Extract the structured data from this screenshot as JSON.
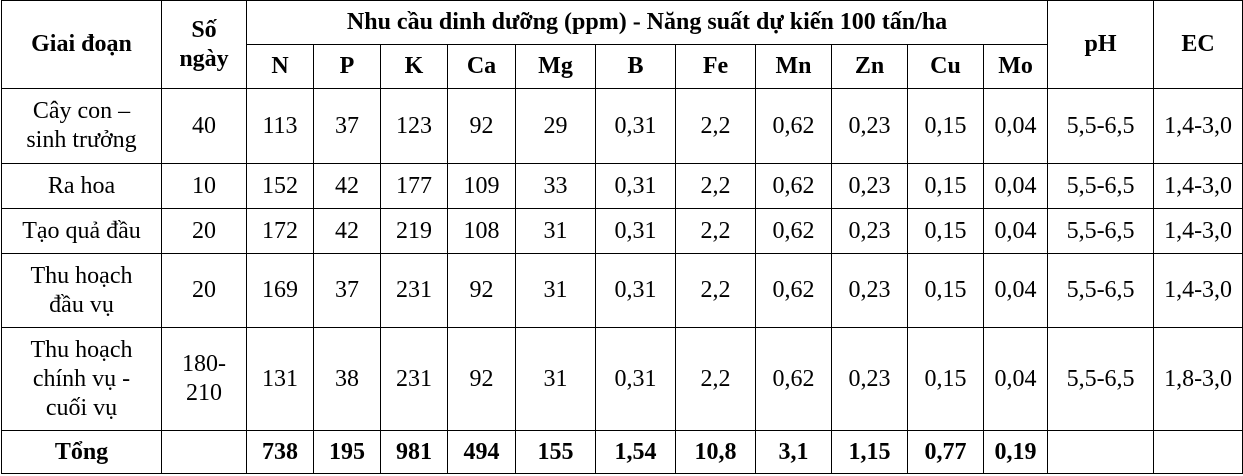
{
  "headers": {
    "stage": "Giai đoạn",
    "days_line1": "Số",
    "days_line2": "ngày",
    "group": "Nhu cầu dinh dưỡng (ppm) - Năng suất dự kiến 100 tấn/ha",
    "nutrients": [
      "N",
      "P",
      "K",
      "Ca",
      "Mg",
      "B",
      "Fe",
      "Mn",
      "Zn",
      "Cu",
      "Mo"
    ],
    "ph": "pH",
    "ec": "EC"
  },
  "rows": [
    {
      "stage_lines": [
        "Cây con –",
        "sinh trưởng"
      ],
      "days_lines": [
        "40"
      ],
      "values": [
        "113",
        "37",
        "123",
        "92",
        "29",
        "0,31",
        "2,2",
        "0,62",
        "0,23",
        "0,15",
        "0,04"
      ],
      "ph": "5,5-6,5",
      "ec": "1,4-3,0"
    },
    {
      "stage_lines": [
        "Ra hoa"
      ],
      "days_lines": [
        "10"
      ],
      "values": [
        "152",
        "42",
        "177",
        "109",
        "33",
        "0,31",
        "2,2",
        "0,62",
        "0,23",
        "0,15",
        "0,04"
      ],
      "ph": "5,5-6,5",
      "ec": "1,4-3,0"
    },
    {
      "stage_lines": [
        "Tạo quả đầu"
      ],
      "days_lines": [
        "20"
      ],
      "values": [
        "172",
        "42",
        "219",
        "108",
        "31",
        "0,31",
        "2,2",
        "0,62",
        "0,23",
        "0,15",
        "0,04"
      ],
      "ph": "5,5-6,5",
      "ec": "1,4-3,0"
    },
    {
      "stage_lines": [
        "Thu hoạch",
        "đầu vụ"
      ],
      "days_lines": [
        "20"
      ],
      "values": [
        "169",
        "37",
        "231",
        "92",
        "31",
        "0,31",
        "2,2",
        "0,62",
        "0,23",
        "0,15",
        "0,04"
      ],
      "ph": "5,5-6,5",
      "ec": "1,4-3,0"
    },
    {
      "stage_lines": [
        "Thu hoạch",
        "chính vụ -",
        "cuối vụ"
      ],
      "days_lines": [
        "180-",
        "210"
      ],
      "values": [
        "131",
        "38",
        "231",
        "92",
        "31",
        "0,31",
        "2,2",
        "0,62",
        "0,23",
        "0,15",
        "0,04"
      ],
      "ph": "5,5-6,5",
      "ec": "1,8-3,0"
    }
  ],
  "total": {
    "label": "Tổng",
    "values": [
      "738",
      "195",
      "981",
      "494",
      "155",
      "1,54",
      "10,8",
      "3,1",
      "1,15",
      "0,77",
      "0,19"
    ]
  }
}
